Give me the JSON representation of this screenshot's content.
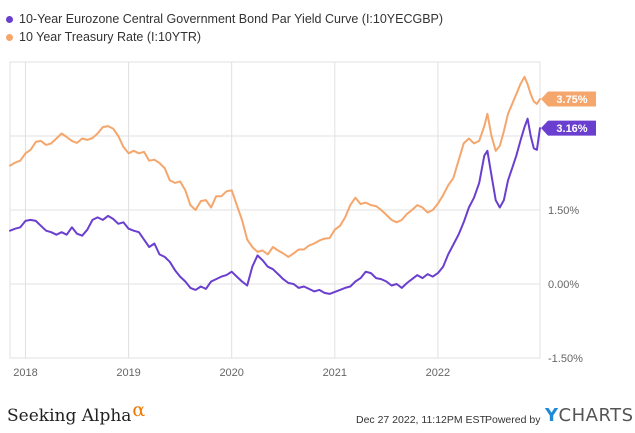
{
  "colors": {
    "eurozone": "#6a3fcf",
    "treasury": "#f5a66c",
    "grid": "#e0e0e0",
    "axis_text": "#666666"
  },
  "legend": [
    {
      "label": "10-Year Eurozone Central Government Bond Par Yield Curve (I:10YECGBP)",
      "color": "#6a3fcf"
    },
    {
      "label": "10 Year Treasury Rate (I:10YTR)",
      "color": "#f5a66c"
    }
  ],
  "footer": {
    "brand": "Seeking Alpha",
    "brand_mark": "α",
    "timestamp": "Dec 27 2022, 11:12PM EST.",
    "powered_by": "Powered by",
    "provider_y": "Y",
    "provider_rest": "CHARTS"
  },
  "chart_data": {
    "type": "line",
    "xlim": [
      2017.85,
      2022.99
    ],
    "ylim": [
      -1.5,
      4.5
    ],
    "y_axis_side": "right",
    "y_ticks": [
      {
        "value": 1.5,
        "label": "1.50%"
      },
      {
        "value": 0.0,
        "label": "0.00%"
      },
      {
        "value": -1.5,
        "label": "-1.50%"
      }
    ],
    "y_gridlines": [
      4.5,
      3.0,
      1.5,
      0.0,
      -1.5
    ],
    "x_ticks": [
      {
        "value": 2018,
        "label": "2018"
      },
      {
        "value": 2019,
        "label": "2019"
      },
      {
        "value": 2020,
        "label": "2020"
      },
      {
        "value": 2021,
        "label": "2021"
      },
      {
        "value": 2022,
        "label": "2022"
      }
    ],
    "grid": true,
    "series": [
      {
        "name": "10-Year Eurozone Central Government Bond Par Yield Curve (I:10YECGBP)",
        "color": "#6a3fcf",
        "end_label": "3.16%",
        "points": [
          [
            2017.85,
            1.08
          ],
          [
            2017.9,
            1.12
          ],
          [
            2017.95,
            1.15
          ],
          [
            2018.0,
            1.28
          ],
          [
            2018.05,
            1.3
          ],
          [
            2018.1,
            1.28
          ],
          [
            2018.15,
            1.18
          ],
          [
            2018.2,
            1.08
          ],
          [
            2018.25,
            1.05
          ],
          [
            2018.3,
            1.0
          ],
          [
            2018.35,
            1.05
          ],
          [
            2018.4,
            1.0
          ],
          [
            2018.45,
            1.15
          ],
          [
            2018.5,
            1.02
          ],
          [
            2018.55,
            0.98
          ],
          [
            2018.6,
            1.1
          ],
          [
            2018.65,
            1.3
          ],
          [
            2018.7,
            1.35
          ],
          [
            2018.75,
            1.3
          ],
          [
            2018.8,
            1.38
          ],
          [
            2018.85,
            1.32
          ],
          [
            2018.9,
            1.22
          ],
          [
            2018.95,
            1.25
          ],
          [
            2019.0,
            1.12
          ],
          [
            2019.05,
            1.08
          ],
          [
            2019.1,
            1.05
          ],
          [
            2019.15,
            0.9
          ],
          [
            2019.2,
            0.75
          ],
          [
            2019.25,
            0.82
          ],
          [
            2019.3,
            0.6
          ],
          [
            2019.35,
            0.55
          ],
          [
            2019.4,
            0.45
          ],
          [
            2019.45,
            0.28
          ],
          [
            2019.5,
            0.15
          ],
          [
            2019.55,
            0.05
          ],
          [
            2019.6,
            -0.08
          ],
          [
            2019.65,
            -0.12
          ],
          [
            2019.7,
            -0.05
          ],
          [
            2019.75,
            -0.1
          ],
          [
            2019.8,
            0.05
          ],
          [
            2019.85,
            0.1
          ],
          [
            2019.9,
            0.15
          ],
          [
            2019.95,
            0.18
          ],
          [
            2020.0,
            0.25
          ],
          [
            2020.05,
            0.15
          ],
          [
            2020.1,
            0.05
          ],
          [
            2020.15,
            -0.03
          ],
          [
            2020.2,
            0.35
          ],
          [
            2020.25,
            0.58
          ],
          [
            2020.3,
            0.48
          ],
          [
            2020.35,
            0.35
          ],
          [
            2020.4,
            0.3
          ],
          [
            2020.45,
            0.2
          ],
          [
            2020.5,
            0.1
          ],
          [
            2020.55,
            0.02
          ],
          [
            2020.6,
            0.0
          ],
          [
            2020.65,
            -0.08
          ],
          [
            2020.7,
            -0.05
          ],
          [
            2020.75,
            -0.1
          ],
          [
            2020.8,
            -0.15
          ],
          [
            2020.85,
            -0.12
          ],
          [
            2020.9,
            -0.18
          ],
          [
            2020.95,
            -0.2
          ],
          [
            2021.0,
            -0.16
          ],
          [
            2021.05,
            -0.12
          ],
          [
            2021.1,
            -0.08
          ],
          [
            2021.15,
            -0.05
          ],
          [
            2021.2,
            0.05
          ],
          [
            2021.25,
            0.12
          ],
          [
            2021.3,
            0.25
          ],
          [
            2021.35,
            0.22
          ],
          [
            2021.4,
            0.12
          ],
          [
            2021.45,
            0.1
          ],
          [
            2021.5,
            0.05
          ],
          [
            2021.55,
            -0.03
          ],
          [
            2021.6,
            0.0
          ],
          [
            2021.65,
            -0.08
          ],
          [
            2021.7,
            0.02
          ],
          [
            2021.75,
            0.1
          ],
          [
            2021.8,
            0.18
          ],
          [
            2021.85,
            0.12
          ],
          [
            2021.9,
            0.2
          ],
          [
            2021.95,
            0.15
          ],
          [
            2022.0,
            0.22
          ],
          [
            2022.05,
            0.35
          ],
          [
            2022.1,
            0.6
          ],
          [
            2022.15,
            0.8
          ],
          [
            2022.2,
            1.0
          ],
          [
            2022.25,
            1.25
          ],
          [
            2022.3,
            1.55
          ],
          [
            2022.35,
            1.75
          ],
          [
            2022.4,
            2.05
          ],
          [
            2022.45,
            2.6
          ],
          [
            2022.48,
            2.7
          ],
          [
            2022.52,
            2.2
          ],
          [
            2022.56,
            1.7
          ],
          [
            2022.6,
            1.55
          ],
          [
            2022.64,
            1.7
          ],
          [
            2022.68,
            2.1
          ],
          [
            2022.72,
            2.35
          ],
          [
            2022.76,
            2.6
          ],
          [
            2022.8,
            2.9
          ],
          [
            2022.84,
            3.18
          ],
          [
            2022.87,
            3.35
          ],
          [
            2022.9,
            3.0
          ],
          [
            2022.93,
            2.75
          ],
          [
            2022.96,
            2.72
          ],
          [
            2022.99,
            3.16
          ]
        ]
      },
      {
        "name": "10 Year Treasury Rate (I:10YTR)",
        "color": "#f5a66c",
        "end_label": "3.75%",
        "points": [
          [
            2017.85,
            2.4
          ],
          [
            2017.9,
            2.46
          ],
          [
            2017.95,
            2.5
          ],
          [
            2018.0,
            2.65
          ],
          [
            2018.05,
            2.72
          ],
          [
            2018.1,
            2.88
          ],
          [
            2018.15,
            2.9
          ],
          [
            2018.2,
            2.82
          ],
          [
            2018.25,
            2.85
          ],
          [
            2018.3,
            2.95
          ],
          [
            2018.35,
            3.05
          ],
          [
            2018.4,
            2.98
          ],
          [
            2018.45,
            2.9
          ],
          [
            2018.5,
            2.86
          ],
          [
            2018.55,
            2.95
          ],
          [
            2018.6,
            2.92
          ],
          [
            2018.65,
            2.96
          ],
          [
            2018.7,
            3.05
          ],
          [
            2018.75,
            3.18
          ],
          [
            2018.8,
            3.2
          ],
          [
            2018.85,
            3.15
          ],
          [
            2018.9,
            3.0
          ],
          [
            2018.95,
            2.78
          ],
          [
            2019.0,
            2.65
          ],
          [
            2019.05,
            2.7
          ],
          [
            2019.1,
            2.65
          ],
          [
            2019.15,
            2.68
          ],
          [
            2019.2,
            2.5
          ],
          [
            2019.25,
            2.52
          ],
          [
            2019.3,
            2.45
          ],
          [
            2019.35,
            2.35
          ],
          [
            2019.4,
            2.1
          ],
          [
            2019.45,
            2.05
          ],
          [
            2019.5,
            2.08
          ],
          [
            2019.55,
            1.9
          ],
          [
            2019.6,
            1.6
          ],
          [
            2019.65,
            1.5
          ],
          [
            2019.7,
            1.68
          ],
          [
            2019.75,
            1.7
          ],
          [
            2019.8,
            1.55
          ],
          [
            2019.85,
            1.78
          ],
          [
            2019.9,
            1.78
          ],
          [
            2019.95,
            1.88
          ],
          [
            2020.0,
            1.9
          ],
          [
            2020.05,
            1.6
          ],
          [
            2020.1,
            1.3
          ],
          [
            2020.15,
            0.9
          ],
          [
            2020.2,
            0.75
          ],
          [
            2020.25,
            0.65
          ],
          [
            2020.3,
            0.68
          ],
          [
            2020.35,
            0.6
          ],
          [
            2020.4,
            0.75
          ],
          [
            2020.45,
            0.68
          ],
          [
            2020.5,
            0.62
          ],
          [
            2020.55,
            0.55
          ],
          [
            2020.6,
            0.62
          ],
          [
            2020.65,
            0.7
          ],
          [
            2020.7,
            0.7
          ],
          [
            2020.75,
            0.78
          ],
          [
            2020.8,
            0.82
          ],
          [
            2020.85,
            0.88
          ],
          [
            2020.9,
            0.92
          ],
          [
            2020.95,
            0.93
          ],
          [
            2021.0,
            1.1
          ],
          [
            2021.05,
            1.18
          ],
          [
            2021.1,
            1.35
          ],
          [
            2021.15,
            1.6
          ],
          [
            2021.2,
            1.75
          ],
          [
            2021.25,
            1.62
          ],
          [
            2021.3,
            1.65
          ],
          [
            2021.35,
            1.6
          ],
          [
            2021.4,
            1.58
          ],
          [
            2021.45,
            1.5
          ],
          [
            2021.5,
            1.4
          ],
          [
            2021.55,
            1.3
          ],
          [
            2021.6,
            1.25
          ],
          [
            2021.65,
            1.3
          ],
          [
            2021.7,
            1.42
          ],
          [
            2021.75,
            1.5
          ],
          [
            2021.8,
            1.6
          ],
          [
            2021.85,
            1.55
          ],
          [
            2021.9,
            1.45
          ],
          [
            2021.95,
            1.5
          ],
          [
            2022.0,
            1.63
          ],
          [
            2022.05,
            1.8
          ],
          [
            2022.1,
            2.0
          ],
          [
            2022.15,
            2.15
          ],
          [
            2022.2,
            2.5
          ],
          [
            2022.25,
            2.85
          ],
          [
            2022.3,
            2.95
          ],
          [
            2022.35,
            2.85
          ],
          [
            2022.4,
            2.9
          ],
          [
            2022.45,
            3.2
          ],
          [
            2022.48,
            3.45
          ],
          [
            2022.52,
            3.0
          ],
          [
            2022.56,
            2.7
          ],
          [
            2022.6,
            2.8
          ],
          [
            2022.64,
            3.1
          ],
          [
            2022.68,
            3.45
          ],
          [
            2022.72,
            3.65
          ],
          [
            2022.76,
            3.85
          ],
          [
            2022.8,
            4.05
          ],
          [
            2022.84,
            4.2
          ],
          [
            2022.87,
            4.05
          ],
          [
            2022.9,
            3.85
          ],
          [
            2022.93,
            3.7
          ],
          [
            2022.96,
            3.65
          ],
          [
            2022.99,
            3.75
          ]
        ]
      }
    ]
  }
}
